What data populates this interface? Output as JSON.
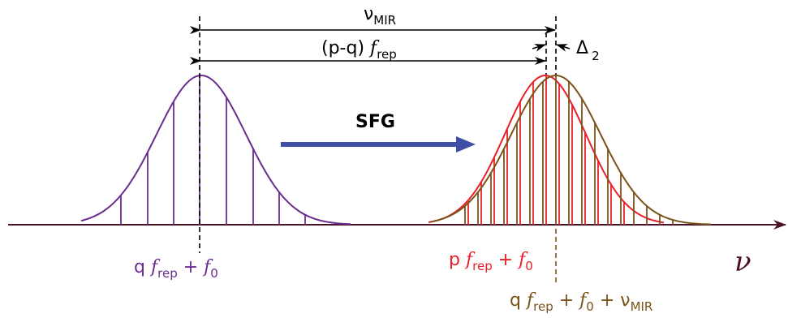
{
  "labels": {
    "nu_mir": {
      "main": "ν",
      "sub": "MIR"
    },
    "pq_frep": {
      "prefix": "(p-q) ",
      "f": "f",
      "sub": "rep"
    },
    "delta2": {
      "main": "Δ",
      "sub": "2"
    },
    "sfg": "SFG",
    "nu_axis": "ν",
    "q_label": {
      "coef": "q ",
      "f1": "f",
      "sub1": "rep",
      "plus": " + ",
      "f2": "f",
      "sub2": "0"
    },
    "p_label": {
      "coef": "p ",
      "f1": "f",
      "sub1": "rep",
      "plus": " + ",
      "f2": "f",
      "sub2": "0"
    },
    "q_mir_label": {
      "coef": "q ",
      "f1": "f",
      "sub1": "rep",
      "plus1": " + ",
      "f2": "f",
      "sub2": "0",
      "plus2": " + ",
      "nu": "ν",
      "sub3": "MIR"
    }
  },
  "colors": {
    "purple": "#6b2c8f",
    "red": "#e8202a",
    "brown": "#7a5318",
    "arrow_blue": "#3f4fa8",
    "black": "#000000",
    "axis": "#4a1228"
  }
}
